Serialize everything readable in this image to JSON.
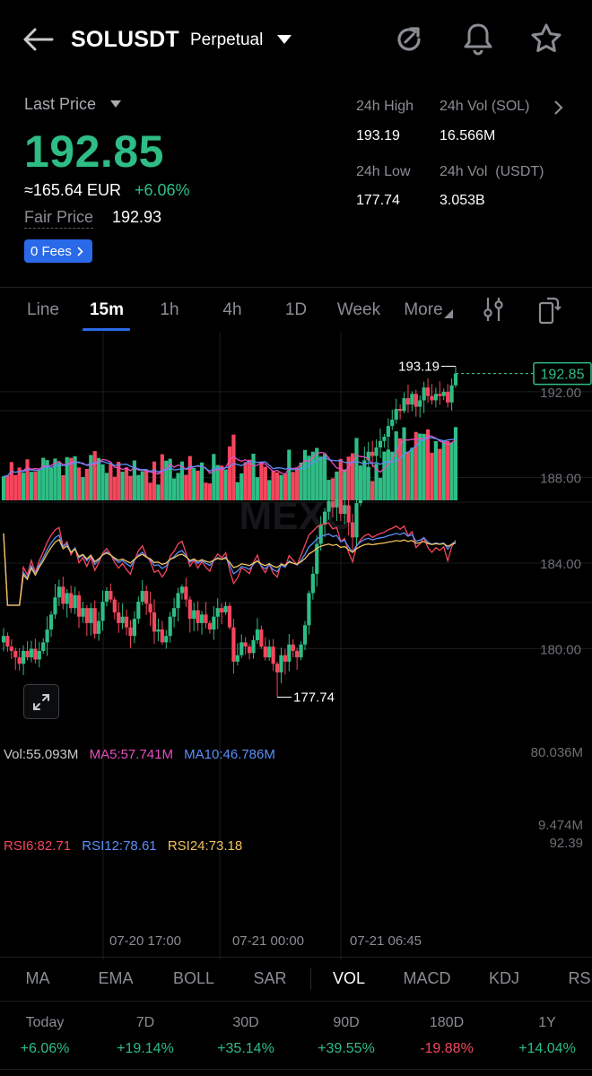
{
  "header": {
    "symbol": "SOLUSDT",
    "contract_type": "Perpetual"
  },
  "price": {
    "last_price_label": "Last Price",
    "last_price": "192.85",
    "fiat_approx": "≈165.64 EUR",
    "change_pct": "+6.06%",
    "fair_price_label": "Fair Price",
    "fair_price": "192.93",
    "fees_badge": "0 Fees"
  },
  "stats": {
    "high_label": "24h High",
    "high_value": "193.19",
    "vol_sol_label": "24h Vol (SOL)",
    "vol_sol_value": "16.566M",
    "low_label": "24h Low",
    "low_value": "177.74",
    "vol_usdt_label": "24h Vol  (USDT)",
    "vol_usdt_value": "3.053B"
  },
  "timeframes": [
    "Line",
    "15m",
    "1h",
    "4h",
    "1D",
    "Week",
    "More"
  ],
  "active_timeframe_index": 1,
  "price_axis": [
    "192.00",
    "188.00",
    "184.00",
    "180.00"
  ],
  "current_price_tag": "192.85",
  "high_annotation": "193.19",
  "low_annotation": "177.74",
  "watermark": "MEXC",
  "volume": {
    "vol": "Vol:55.093M",
    "ma5": "MA5:57.741M",
    "ma10": "MA10:46.786M",
    "axis_top": "80.036M",
    "axis_bottom": "9.474M"
  },
  "rsi": {
    "rsi6": "RSI6:82.71",
    "rsi12": "RSI12:78.61",
    "rsi24": "RSI24:73.18",
    "axis_top": "92.39"
  },
  "time_labels": [
    "07-20 17:00",
    "07-21 00:00",
    "07-21 06:45"
  ],
  "indicators": [
    "MA",
    "EMA",
    "BOLL",
    "SAR",
    "VOL",
    "MACD",
    "KDJ",
    "RS"
  ],
  "performance": [
    {
      "label": "Today",
      "value": "+6.06%"
    },
    {
      "label": "7D",
      "value": "+19.14%"
    },
    {
      "label": "30D",
      "value": "+35.14%"
    },
    {
      "label": "90D",
      "value": "+39.55%"
    },
    {
      "label": "180D",
      "value": "-19.88%"
    },
    {
      "label": "1Y",
      "value": "+14.04%"
    }
  ],
  "colors": {
    "up": "#2ebd85",
    "down": "#f6465d",
    "accent": "#2a6ae8",
    "ma5": "#e84ec2",
    "ma10": "#5b8ff9",
    "rsi24": "#f3c35c"
  },
  "chart_data": {
    "type": "candlestick",
    "price_range": [
      176.8,
      194.8
    ],
    "high": 193.19,
    "low": 177.74,
    "last": 192.85,
    "closes": [
      180.6,
      180.1,
      179.9,
      179.6,
      179.3,
      179.9,
      179.6,
      180.0,
      179.5,
      179.9,
      180.3,
      180.9,
      181.6,
      182.4,
      182.9,
      182.1,
      182.6,
      181.9,
      182.5,
      181.5,
      181.9,
      181.2,
      181.9,
      180.7,
      181.3,
      182.2,
      182.7,
      182.3,
      181.7,
      181.2,
      181.5,
      181.0,
      180.6,
      181.4,
      182.2,
      182.7,
      182.1,
      181.7,
      180.8,
      180.9,
      180.3,
      180.6,
      181.5,
      181.9,
      182.6,
      182.9,
      182.3,
      181.4,
      181.8,
      181.2,
      181.6,
      181.2,
      180.9,
      181.5,
      181.9,
      181.7,
      182.0,
      181.0,
      179.4,
      179.7,
      180.3,
      180.1,
      179.8,
      180.4,
      180.9,
      180.1,
      179.6,
      180.1,
      179.3,
      178.9,
      179.7,
      179.4,
      180.2,
      179.9,
      179.6,
      180.2,
      181.1,
      182.6,
      183.5,
      184.9,
      185.8,
      186.4,
      186.9,
      186.6,
      187.0,
      186.3,
      186.7,
      185.9,
      185.2,
      186.8,
      187.9,
      188.8,
      189.2,
      189.0,
      189.4,
      189.7,
      189.9,
      190.4,
      190.7,
      191.2,
      191.1,
      191.7,
      191.4,
      191.9,
      191.3,
      191.6,
      192.2,
      191.8,
      191.6,
      191.9,
      191.8,
      192.0,
      191.5,
      192.3,
      192.85
    ],
    "volume_range": [
      9.474,
      80.036
    ],
    "rsi_top": 92.39
  }
}
